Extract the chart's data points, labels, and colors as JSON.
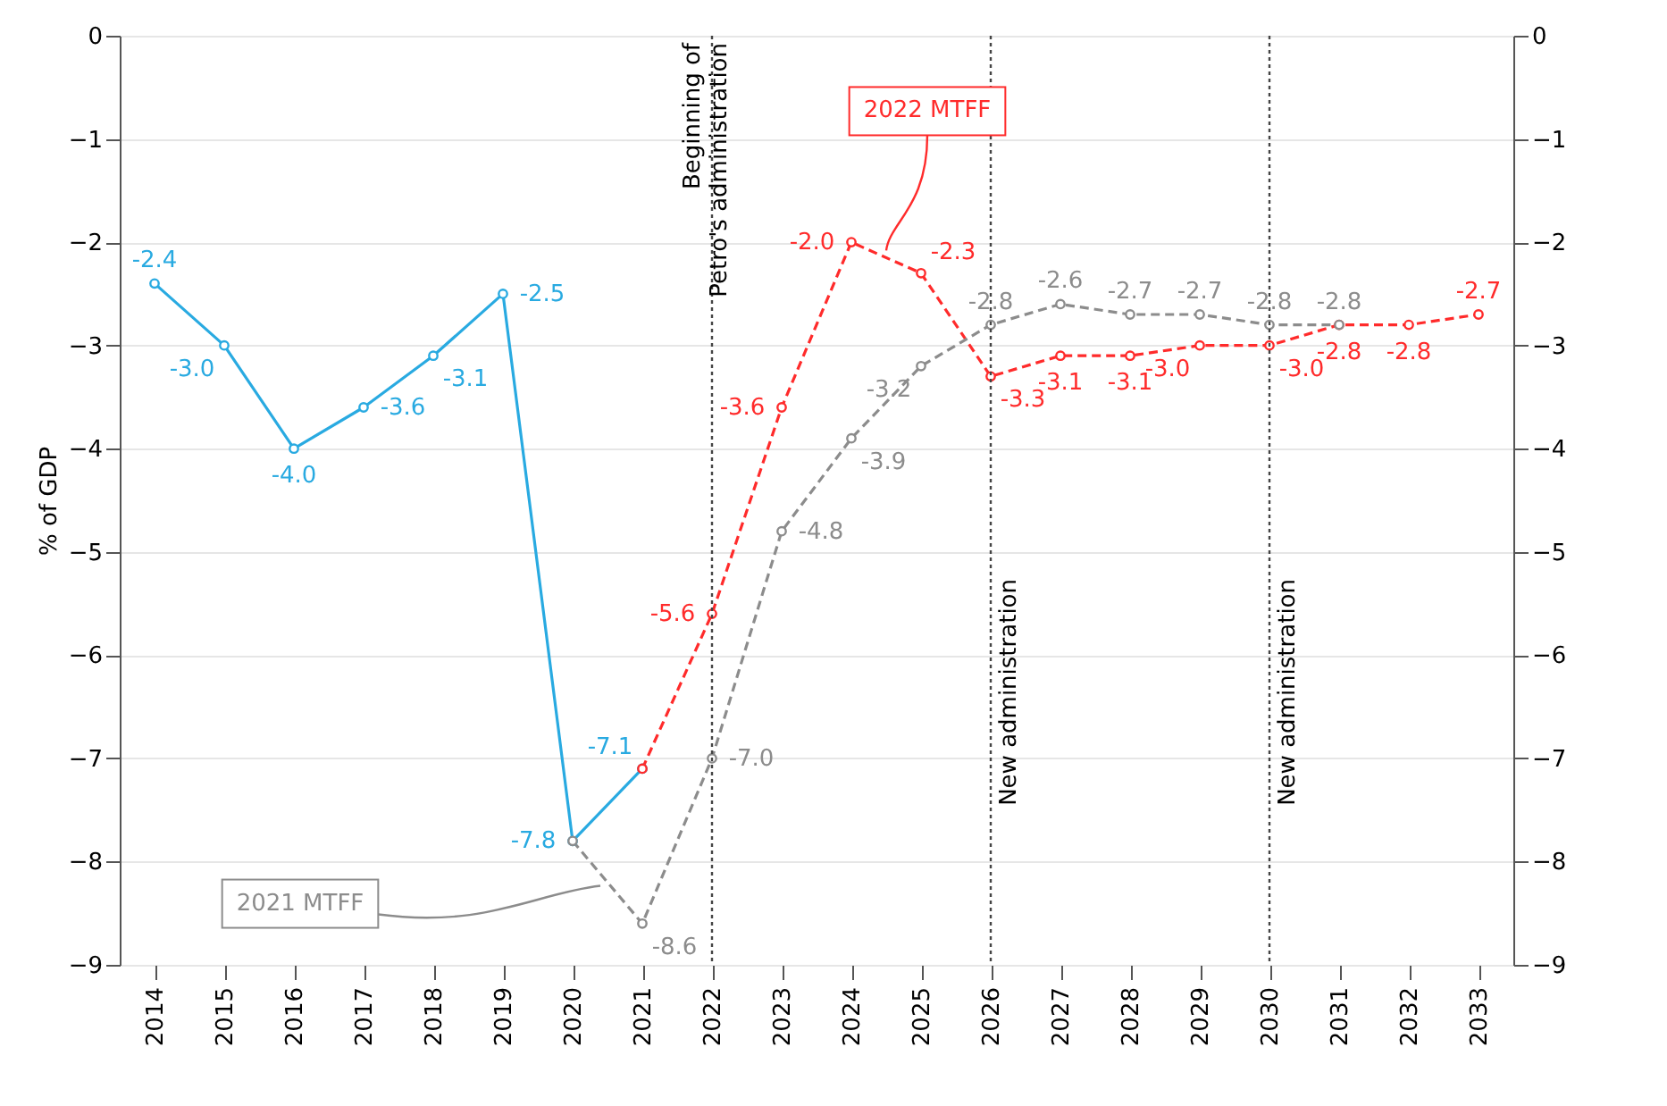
{
  "chart_data": {
    "type": "line",
    "ylabel": "% of GDP",
    "categories": [
      "2014",
      "2015",
      "2016",
      "2017",
      "2018",
      "2019",
      "2020",
      "2021",
      "2022",
      "2023",
      "2024",
      "2025",
      "2026",
      "2027",
      "2028",
      "2029",
      "2030",
      "2031",
      "2032",
      "2033"
    ],
    "series": [
      {
        "color": "#29aae1",
        "line_style": "solid",
        "values": [
          -2.4,
          -3.0,
          -4.0,
          -3.6,
          -3.1,
          -2.5,
          -7.8,
          -7.1,
          null,
          null,
          null,
          null,
          null,
          null,
          null,
          null,
          null,
          null,
          null,
          null
        ],
        "value_labels": [
          "-2.4",
          "-3.0",
          "-4.0",
          "-3.6",
          "-3.1",
          "-2.5",
          "-7.8",
          "-7.1",
          null,
          null,
          null,
          null,
          null,
          null,
          null,
          null,
          null,
          null,
          null,
          null
        ]
      },
      {
        "name": "2022 MTFF",
        "color": "#ff2b2b",
        "line_style": "dashed",
        "values": [
          null,
          null,
          null,
          null,
          null,
          null,
          null,
          -7.1,
          -5.6,
          -3.6,
          -2.0,
          -2.3,
          -3.3,
          -3.1,
          -3.1,
          -3.0,
          -3.0,
          -2.8,
          -2.8,
          -2.7
        ],
        "value_labels": [
          null,
          null,
          null,
          null,
          null,
          null,
          null,
          null,
          "-5.6",
          "-3.6",
          "-2.0",
          "-2.3",
          "-3.3",
          "-3.1",
          "-3.1",
          "-3.0",
          "-3.0",
          "-2.8",
          "-2.8",
          "-2.7"
        ]
      },
      {
        "name": "2021 MTFF",
        "color": "#8c8c8c",
        "line_style": "dashed",
        "values": [
          null,
          null,
          null,
          null,
          null,
          null,
          -7.8,
          -8.6,
          -7.0,
          -4.8,
          -3.9,
          -3.2,
          -2.8,
          -2.6,
          -2.7,
          -2.7,
          -2.8,
          -2.8,
          null,
          null
        ],
        "value_labels": [
          null,
          null,
          null,
          null,
          null,
          null,
          null,
          "-8.6",
          "-7.0",
          "-4.8",
          "-3.9",
          "-3.2",
          "-2.8",
          "-2.6",
          "-2.7",
          "-2.7",
          "-2.8",
          "-2.8",
          null,
          null
        ]
      }
    ],
    "ylim": [
      -9,
      0
    ],
    "yticks": [
      {
        "value": -9,
        "label": "−9"
      },
      {
        "value": -8,
        "label": "−8"
      },
      {
        "value": -7,
        "label": "−7"
      },
      {
        "value": -6,
        "label": "−6"
      },
      {
        "value": -5,
        "label": "−5"
      },
      {
        "value": -4,
        "label": "−4"
      },
      {
        "value": -3,
        "label": "−3"
      },
      {
        "value": -2,
        "label": "−2"
      },
      {
        "value": -1,
        "label": "−1"
      },
      0
    ],
    "y2lim": [
      -9,
      0
    ],
    "y2ticks": [
      {
        "value": -9,
        "label": "−9"
      },
      {
        "value": -8,
        "label": "−8"
      },
      {
        "value": -7,
        "label": "−7"
      },
      {
        "value": -6,
        "label": "−6"
      },
      {
        "value": -5,
        "label": "−5"
      },
      {
        "value": -4,
        "label": "−4"
      },
      {
        "value": -3,
        "label": "−3"
      },
      {
        "value": -2,
        "label": "−2"
      },
      {
        "value": -1,
        "label": "−1"
      },
      0
    ],
    "ref_lines": [
      {
        "axis": "x",
        "value": "2022",
        "label": "Beginning of\nPetro's administration",
        "color": "#444444",
        "line_style": "dotted"
      },
      {
        "axis": "x",
        "value": "2026",
        "label": "New administration",
        "color": "#444444",
        "line_style": "dotted"
      },
      {
        "axis": "x",
        "value": "2030",
        "label": "New administration",
        "color": "#444444",
        "line_style": "dotted"
      }
    ],
    "grid": "y",
    "marker": "circle",
    "legend": false
  }
}
